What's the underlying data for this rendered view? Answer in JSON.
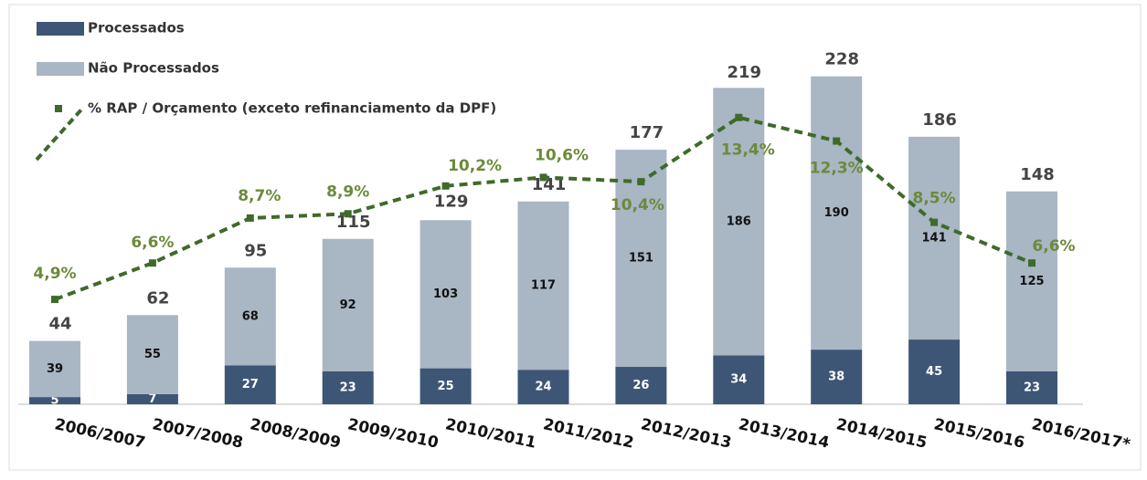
{
  "chart_data": {
    "type": "bar",
    "categories": [
      "2006/2007",
      "2007/2008",
      "2008/2009",
      "2009/2010",
      "2010/2011",
      "2011/2012",
      "2012/2013",
      "2013/2014",
      "2014/2015",
      "2015/2016",
      "2016/2017*"
    ],
    "series": [
      {
        "name": "Processados",
        "color": "#3d5676",
        "values": [
          5,
          7,
          27,
          23,
          25,
          24,
          26,
          34,
          38,
          45,
          23
        ]
      },
      {
        "name": "Não Processados",
        "color": "#a9b6c4",
        "values": [
          39,
          55,
          68,
          92,
          103,
          117,
          151,
          186,
          190,
          141,
          125
        ]
      },
      {
        "name": "% RAP / Orçamento (exceto refinanciamento da DPF)",
        "color": "#3f6a2a",
        "axis": "y2",
        "type": "line",
        "values": [
          4.9,
          6.6,
          8.7,
          8.9,
          10.2,
          10.6,
          10.4,
          13.4,
          12.3,
          8.5,
          6.6
        ],
        "value_labels": [
          "4,9%",
          "6,6%",
          "8,7%",
          "8,9%",
          "10,2%",
          "10,6%",
          "10,4%",
          "13,4%",
          "12,3%",
          "8,5%",
          "6,6%"
        ]
      }
    ],
    "totals": [
      44,
      62,
      95,
      115,
      129,
      141,
      177,
      219,
      228,
      186,
      148
    ],
    "ylim": [
      0,
      250
    ],
    "y2lim": [
      0,
      16.8
    ]
  }
}
